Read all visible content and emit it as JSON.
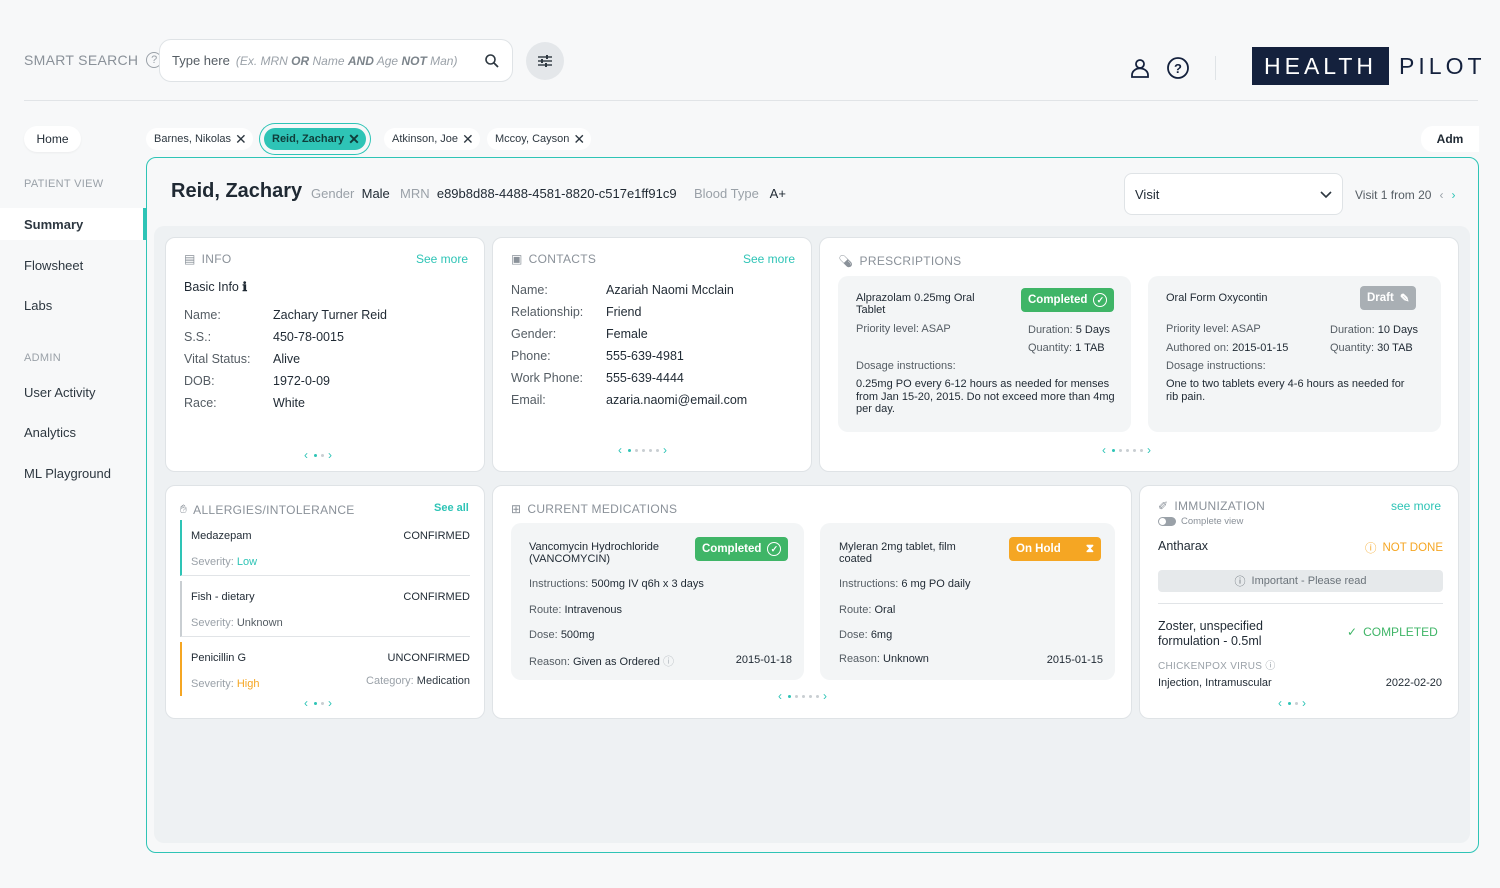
{
  "search": {
    "label": "SMART SEARCH",
    "placeholder": "Type here",
    "hint_pre": "(Ex. MRN ",
    "hint_or": "OR",
    "hint_mid1": " Name ",
    "hint_and": "AND",
    "hint_mid2": " Age ",
    "hint_not": "NOT",
    "hint_post": " Man)"
  },
  "logo": {
    "part1": "HEALTH",
    "part2": "PILOT"
  },
  "sidebar": {
    "home": "Home",
    "section_patient": "PATIENT VIEW",
    "patient_items": [
      "Summary",
      "Flowsheet",
      "Labs"
    ],
    "section_admin": "ADMIN",
    "admin_items": [
      "User Activity",
      "Analytics",
      "ML Playground"
    ]
  },
  "tabs": [
    "Barnes, Nikolas",
    "Reid, Zachary",
    "Atkinson, Joe",
    "Mccoy, Cayson"
  ],
  "adm": "Adm",
  "patient": {
    "name": "Reid, Zachary",
    "gender_label": "Gender",
    "gender": "Male",
    "mrn_label": "MRN",
    "mrn": "e89b8d88-4488-4581-8820-c517e1ff91c9",
    "blood_label": "Blood Type",
    "blood": "A+"
  },
  "visit": {
    "select": "Visit",
    "nav": "Visit 1 from 20"
  },
  "info": {
    "title": "INFO",
    "see_more": "See more",
    "basic": "Basic Info",
    "rows": [
      [
        "Name:",
        "Zachary Turner Reid"
      ],
      [
        "S.S.:",
        "450-78-0015"
      ],
      [
        "Vital Status:",
        "Alive"
      ],
      [
        "DOB:",
        "1972-0-09"
      ],
      [
        "Race:",
        "White"
      ]
    ]
  },
  "contacts": {
    "title": "CONTACTS",
    "see_more": "See more",
    "rows": [
      [
        "Name:",
        "Azariah Naomi Mcclain"
      ],
      [
        "Relationship:",
        "Friend"
      ],
      [
        "Gender:",
        "Female"
      ],
      [
        "Phone:",
        "555-639-4981"
      ],
      [
        "Work Phone:",
        "555-639-4444"
      ],
      [
        "Email:",
        "azaria.naomi@email.com"
      ]
    ]
  },
  "prescriptions": {
    "title": "PRESCRIPTIONS",
    "items": [
      {
        "name": "Alprazolam 0.25mg Oral Tablet",
        "status": "Completed",
        "priority": "Priority level: ASAP",
        "duration_label": "Duration:",
        "duration": "5 Days",
        "quantity_label": "Quantity:",
        "quantity": "1 TAB",
        "dosage_label": "Dosage instructions:",
        "dosage": "0.25mg PO every 6-12 hours as needed for menses from Jan 15-20, 2015.  Do not exceed more than 4mg per day."
      },
      {
        "name": "Oral Form Oxycontin",
        "status": "Draft",
        "priority": "Priority level: ASAP",
        "authored_label": "Authored on:",
        "authored": "2015-01-15",
        "duration_label": "Duration:",
        "duration": "10 Days",
        "quantity_label": "Quantity:",
        "quantity": "30 TAB",
        "dosage_label": "Dosage instructions:",
        "dosage": "One to two tablets every 4-6 hours as needed for rib pain."
      }
    ]
  },
  "allergies": {
    "title": "ALLERGIES/INTOLERANCE",
    "see_all": "See all",
    "severity_label": "Severity:",
    "category_label": "Category:",
    "items": [
      {
        "name": "Medazepam",
        "status": "CONFIRMED",
        "severity": "Low",
        "color": "#2ec4b6"
      },
      {
        "name": "Fish - dietary",
        "status": "CONFIRMED",
        "severity": "Unknown",
        "color": "#c9ced2"
      },
      {
        "name": "Penicillin G",
        "status": "UNCONFIRMED",
        "severity": "High",
        "color": "#f5a623",
        "category": "Medication"
      }
    ]
  },
  "medications": {
    "title": "CURRENT MEDICATIONS",
    "items": [
      {
        "name": "Vancomycin Hydrochloride (VANCOMYCIN)",
        "status": "Completed",
        "instructions_label": "Instructions:",
        "instructions": "500mg IV q6h x 3 days",
        "route_label": "Route:",
        "route": "Intravenous",
        "dose_label": "Dose:",
        "dose": "500mg",
        "reason_label": "Reason:",
        "reason": "Given as Ordered",
        "date": "2015-01-18"
      },
      {
        "name": "Myleran 2mg tablet, film coated",
        "status": "On Hold",
        "instructions_label": "Instructions:",
        "instructions": "6 mg PO daily",
        "route_label": "Route:",
        "route": "Oral",
        "dose_label": "Dose:",
        "dose": "6mg",
        "reason_label": "Reason:",
        "reason": "Unknown",
        "date": "2015-01-15"
      }
    ]
  },
  "immunization": {
    "title": "IMMUNIZATION",
    "see_more": "see more",
    "toggle": "Complete view",
    "item1": {
      "name": "Antharax",
      "status": "NOT DONE",
      "note": "Important - Please read"
    },
    "item2": {
      "name": "Zoster, unspecified formulation - 0.5ml",
      "status": "COMPLETED",
      "virus": "CHICKENPOX VIRUS",
      "route": "Injection, Intramuscular",
      "date": "2022-02-20"
    }
  },
  "colors": {
    "accent": "#2ec4b6",
    "brand": "#14213d",
    "completed": "#3fb567",
    "hold": "#f5a623"
  }
}
